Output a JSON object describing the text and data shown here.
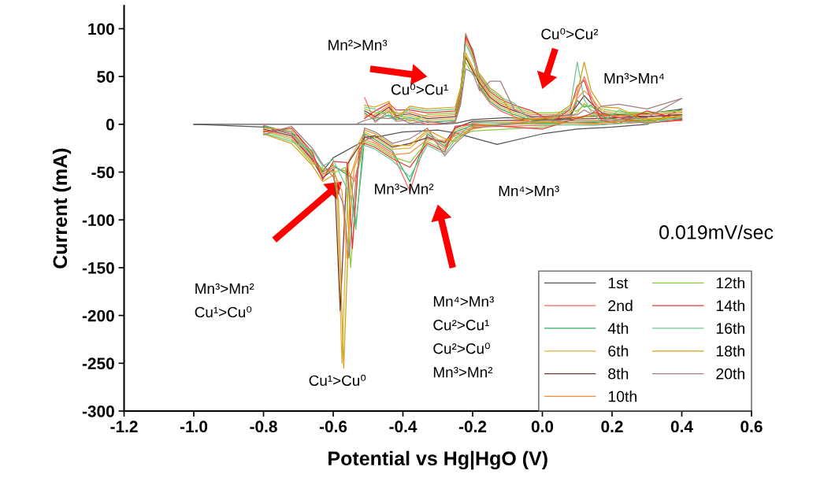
{
  "chart_data": {
    "type": "line",
    "xlabel": "Potential vs Hg|HgO (V)",
    "ylabel": "Current (mA)",
    "xlim": [
      -1.2,
      0.6
    ],
    "xticks": [
      -1.2,
      {
        "value": -1.0,
        "label": "-1.0"
      },
      -0.8,
      -0.6,
      -0.4,
      -0.2,
      {
        "value": 0.0,
        "label": "0.0"
      },
      0.2,
      0.4,
      0.6
    ],
    "ylim": [
      -300,
      124
    ],
    "yticks": [
      -300,
      -250,
      -200,
      -150,
      -100,
      -50,
      0,
      50,
      100
    ],
    "legend": "lower right",
    "line_style": "solid",
    "annotations": [
      "Mn²>Mn³",
      "Cu⁰>Cu²",
      "Mn³>Mn⁴",
      "Cu⁰>Cu¹",
      "Mn³>Mn²",
      "Mn⁴>Mn³",
      "Mn³>Mn²\nCu¹>Cu⁰",
      "Mn⁴>Mn³\nCu²>Cu¹\nCu²>Cu⁰\nMn³>Mn²",
      "Cu¹>Cu⁰",
      "0.019mV/sec"
    ],
    "series": [
      {
        "name": "1st",
        "color": "#555555",
        "x": [
          -1.0,
          -0.6,
          -0.3,
          -0.25,
          -0.2,
          -0.1,
          0.0,
          0.2,
          0.3,
          0.4
        ],
        "values": [
          0,
          0,
          0,
          1,
          5,
          7,
          5,
          10,
          11,
          16
        ]
      },
      {
        "color": "#555555",
        "x": [
          0.4,
          0.3,
          0.2,
          0.1,
          0.0,
          -0.13,
          -0.25,
          -0.3,
          -0.4,
          -0.5,
          -0.6,
          -0.63,
          -0.7,
          -0.8,
          -1.0
        ],
        "values": [
          16,
          0,
          -3,
          -5,
          -10,
          -21,
          -9,
          -6,
          -8,
          -15,
          -35,
          -49,
          -12,
          -3,
          0
        ]
      },
      {
        "name": "2nd",
        "color": "#ff6666",
        "x": [
          -0.51,
          -0.48,
          -0.44,
          -0.42,
          -0.38,
          -0.33,
          -0.25,
          -0.235,
          -0.22,
          -0.2,
          -0.18,
          -0.15,
          -0.12,
          -0.08,
          -0.03,
          0.03,
          0.08,
          0.1,
          0.12,
          0.14,
          0.17,
          0.22,
          0.3,
          0.4
        ],
        "values": [
          28,
          2,
          14,
          3,
          5,
          0,
          2,
          22,
          95,
          76,
          37,
          22,
          14,
          8,
          2,
          2,
          4,
          30,
          50,
          30,
          6,
          3,
          2,
          4
        ]
      },
      {
        "color": "#ff6666",
        "x": [
          0.4,
          0.3,
          0.15,
          0.0,
          -0.2,
          -0.25,
          -0.28,
          -0.33,
          -0.38,
          -0.43,
          -0.48,
          -0.51,
          -0.52,
          -0.54,
          -0.555,
          -0.6,
          -0.63,
          -0.66,
          -0.72,
          -0.8
        ],
        "values": [
          4,
          2,
          0,
          -1,
          -3,
          -10,
          -25,
          -12,
          -70,
          -30,
          -18,
          -12,
          -30,
          -60,
          -50,
          -45,
          -52,
          -35,
          -10,
          -1
        ]
      },
      {
        "name": "4th",
        "color": "#2eaa5c",
        "x": [
          -0.51,
          -0.48,
          -0.44,
          -0.42,
          -0.38,
          -0.33,
          -0.25,
          -0.235,
          -0.22,
          -0.2,
          -0.18,
          -0.15,
          -0.12,
          -0.08,
          -0.03,
          0.03,
          0.08,
          0.1,
          0.12,
          0.14,
          0.17,
          0.22,
          0.3,
          0.4
        ],
        "values": [
          12,
          4,
          10,
          5,
          7,
          2,
          4,
          24,
          93,
          74,
          39,
          24,
          16,
          10,
          4,
          4,
          6,
          25,
          18,
          20,
          8,
          5,
          4,
          6
        ]
      },
      {
        "color": "#2eaa5c",
        "x": [
          0.4,
          0.3,
          0.15,
          0.0,
          -0.2,
          -0.25,
          -0.28,
          -0.33,
          -0.38,
          -0.43,
          -0.48,
          -0.51,
          -0.515,
          -0.535,
          -0.55,
          -0.6,
          -0.63,
          -0.66,
          -0.72,
          -0.8
        ],
        "values": [
          6,
          4,
          2,
          1,
          -1,
          -8,
          -23,
          -10,
          -60,
          -28,
          -16,
          -10,
          -34,
          -105,
          -55,
          -43,
          -50,
          -33,
          -8,
          -2
        ]
      },
      {
        "name": "6th",
        "color": "#dcb040",
        "x": [
          -0.51,
          -0.48,
          -0.44,
          -0.42,
          -0.38,
          -0.33,
          -0.25,
          -0.235,
          -0.22,
          -0.2,
          -0.18,
          -0.15,
          -0.12,
          -0.08,
          -0.03,
          0.03,
          0.08,
          0.1,
          0.12,
          0.14,
          0.17,
          0.22,
          0.3,
          0.4
        ],
        "values": [
          10,
          6,
          16,
          7,
          9,
          4,
          6,
          26,
          75,
          60,
          41,
          26,
          18,
          12,
          6,
          6,
          8,
          12,
          22,
          15,
          10,
          7,
          6,
          8
        ]
      },
      {
        "color": "#dcb040",
        "x": [
          0.4,
          0.3,
          0.15,
          0.0,
          -0.2,
          -0.25,
          -0.28,
          -0.33,
          -0.38,
          -0.43,
          -0.48,
          -0.51,
          -0.555,
          -0.575,
          -0.59,
          -0.6,
          -0.63,
          -0.66,
          -0.72,
          -0.8
        ],
        "values": [
          8,
          6,
          4,
          3,
          1,
          -6,
          -21,
          -8,
          -25,
          -26,
          -14,
          -8,
          -38,
          -250,
          -60,
          -41,
          -54,
          -31,
          -6,
          -4
        ]
      },
      {
        "name": "8th",
        "color": "#7a3434",
        "x": [
          -0.51,
          -0.48,
          -0.44,
          -0.42,
          -0.38,
          -0.33,
          -0.25,
          -0.235,
          -0.22,
          -0.2,
          -0.18,
          -0.15,
          -0.12,
          -0.08,
          -0.03,
          0.03,
          0.08,
          0.1,
          0.12,
          0.14,
          0.17,
          0.22,
          0.3,
          0.4
        ],
        "values": [
          14,
          8,
          18,
          9,
          11,
          6,
          8,
          28,
          70,
          56,
          43,
          28,
          20,
          14,
          8,
          8,
          10,
          20,
          30,
          22,
          12,
          9,
          8,
          10
        ]
      },
      {
        "color": "#7a3434",
        "x": [
          0.4,
          0.3,
          0.15,
          0.0,
          -0.2,
          -0.25,
          -0.28,
          -0.33,
          -0.38,
          -0.43,
          -0.48,
          -0.51,
          -0.56,
          -0.58,
          -0.595,
          -0.6,
          -0.63,
          -0.66,
          -0.72,
          -0.8
        ],
        "values": [
          10,
          8,
          6,
          5,
          3,
          -4,
          -19,
          -14,
          -20,
          -24,
          -12,
          -14,
          -42,
          -195,
          -65,
          -47,
          -56,
          -37,
          -12,
          -5
        ]
      },
      {
        "name": "10th",
        "color": "#ff8c3c",
        "x": [
          -0.51,
          -0.48,
          -0.44,
          -0.42,
          -0.38,
          -0.33,
          -0.25,
          -0.235,
          -0.22,
          -0.2,
          -0.18,
          -0.15,
          -0.12,
          -0.08,
          -0.03,
          0.03,
          0.08,
          0.1,
          0.12,
          0.14,
          0.17,
          0.22,
          0.3,
          0.4
        ],
        "values": [
          8,
          10,
          20,
          11,
          13,
          8,
          10,
          30,
          89,
          71,
          45,
          30,
          22,
          16,
          10,
          10,
          12,
          27,
          35,
          28,
          14,
          11,
          10,
          12
        ]
      },
      {
        "color": "#ff8c3c",
        "x": [
          0.4,
          0.3,
          0.15,
          0.0,
          -0.2,
          -0.25,
          -0.28,
          -0.33,
          -0.38,
          -0.43,
          -0.48,
          -0.51,
          -0.54,
          -0.56,
          -0.575,
          -0.6,
          -0.63,
          -0.66,
          -0.72,
          -0.8
        ],
        "values": [
          12,
          10,
          8,
          7,
          -5,
          -12,
          -17,
          -16,
          -30,
          -32,
          -20,
          -16,
          -46,
          -140,
          -70,
          -49,
          -48,
          -39,
          -14,
          -6
        ]
      },
      {
        "name": "12th",
        "color": "#8ccc3c",
        "x": [
          -0.51,
          -0.48,
          -0.44,
          -0.42,
          -0.38,
          -0.33,
          -0.25,
          -0.235,
          -0.22,
          -0.2,
          -0.18,
          -0.15,
          -0.12,
          -0.08,
          -0.03,
          0.03,
          0.08,
          0.1,
          0.12,
          0.14,
          0.17,
          0.22,
          0.3,
          0.4
        ],
        "values": [
          16,
          12,
          12,
          13,
          3,
          10,
          12,
          32,
          65,
          52,
          47,
          32,
          24,
          18,
          12,
          12,
          14,
          14,
          20,
          18,
          16,
          13,
          12,
          14
        ]
      },
      {
        "color": "#8ccc3c",
        "x": [
          0.4,
          0.3,
          0.15,
          0.0,
          -0.2,
          -0.25,
          -0.28,
          -0.33,
          -0.38,
          -0.43,
          -0.48,
          -0.51,
          -0.53,
          -0.55,
          -0.565,
          -0.6,
          -0.63,
          -0.66,
          -0.72,
          -0.8
        ],
        "values": [
          14,
          12,
          10,
          -3,
          -7,
          -14,
          -27,
          -18,
          -40,
          -34,
          -22,
          -18,
          -50,
          -150,
          -45,
          -51,
          -46,
          -41,
          -16,
          -7
        ]
      },
      {
        "name": "14th",
        "color": "#e83838",
        "x": [
          -0.51,
          -0.48,
          -0.44,
          -0.42,
          -0.38,
          -0.33,
          -0.25,
          -0.235,
          -0.22,
          -0.2,
          -0.18,
          -0.15,
          -0.12,
          -0.08,
          -0.03,
          0.03,
          0.08,
          0.1,
          0.12,
          0.14,
          0.17,
          0.22,
          0.3,
          0.4
        ],
        "values": [
          6,
          14,
          22,
          15,
          15,
          12,
          14,
          34,
          91,
          78,
          49,
          34,
          26,
          20,
          14,
          3,
          16,
          40,
          46,
          25,
          4,
          1,
          14,
          5
        ]
      },
      {
        "color": "#e83838",
        "x": [
          0.4,
          0.3,
          0.15,
          0.0,
          -0.2,
          -0.25,
          -0.28,
          -0.33,
          -0.38,
          -0.43,
          -0.48,
          -0.51,
          -0.525,
          -0.545,
          -0.56,
          -0.6,
          -0.63,
          -0.66,
          -0.72,
          -0.8
        ],
        "values": [
          5,
          1,
          12,
          -5,
          0,
          -2,
          -29,
          -20,
          -45,
          -36,
          -24,
          -20,
          -26,
          -130,
          -40,
          -39,
          -58,
          -29,
          -4,
          -8
        ]
      },
      {
        "name": "16th",
        "color": "#6cc890",
        "x": [
          -0.51,
          -0.48,
          -0.44,
          -0.42,
          -0.38,
          -0.33,
          -0.25,
          -0.235,
          -0.22,
          -0.2,
          -0.18,
          -0.15,
          -0.12,
          -0.08,
          -0.03,
          0.03,
          0.08,
          0.1,
          0.12,
          0.14,
          0.17,
          0.22,
          0.3,
          0.4
        ],
        "values": [
          18,
          16,
          8,
          4,
          17,
          14,
          16,
          36,
          85,
          68,
          51,
          36,
          28,
          22,
          3,
          5,
          18,
          65,
          26,
          13,
          2,
          15,
          1,
          7
        ]
      },
      {
        "color": "#6cc890",
        "x": [
          0.4,
          0.3,
          0.15,
          0.0,
          -0.2,
          -0.25,
          -0.28,
          -0.33,
          -0.38,
          -0.43,
          -0.48,
          -0.51,
          -0.515,
          -0.535,
          -0.55,
          -0.6,
          -0.63,
          -0.66,
          -0.72,
          -0.8
        ],
        "values": [
          7,
          3,
          -1,
          0,
          2,
          -16,
          -31,
          -22,
          -55,
          -38,
          -26,
          -22,
          -22,
          -110,
          -75,
          -37,
          -44,
          -27,
          -18,
          -9
        ]
      },
      {
        "name": "18th",
        "color": "#d4a010",
        "x": [
          -0.51,
          -0.48,
          -0.44,
          -0.42,
          -0.38,
          -0.33,
          -0.25,
          -0.235,
          -0.22,
          -0.2,
          -0.18,
          -0.15,
          -0.12,
          -0.08,
          -0.03,
          0.03,
          0.08,
          0.1,
          0.12,
          0.14,
          0.17,
          0.22,
          0.3,
          0.4
        ],
        "values": [
          20,
          18,
          24,
          6,
          19,
          16,
          18,
          38,
          72,
          58,
          53,
          38,
          30,
          6,
          5,
          7,
          20,
          33,
          65,
          35,
          18,
          17,
          3,
          9
        ]
      },
      {
        "color": "#d4a010",
        "x": [
          0.4,
          0.3,
          0.15,
          0.0,
          -0.2,
          -0.25,
          -0.28,
          -0.33,
          -0.38,
          -0.43,
          -0.48,
          -0.51,
          -0.55,
          -0.57,
          -0.585,
          -0.6,
          -0.63,
          -0.66,
          -0.72,
          -0.8
        ],
        "values": [
          9,
          5,
          1,
          2,
          -2,
          -18,
          -15,
          -6,
          -22,
          -22,
          -10,
          -6,
          -54,
          -255,
          -80,
          -53,
          -60,
          -43,
          -20,
          -10
        ]
      },
      {
        "name": "20th",
        "color": "#a08080",
        "x": [
          -0.53,
          -0.51,
          -0.48,
          -0.44,
          -0.42,
          -0.38,
          -0.33,
          -0.28,
          -0.25,
          -0.235,
          -0.22,
          -0.2,
          -0.18,
          -0.15,
          -0.12,
          -0.08,
          -0.03,
          0.03,
          0.08,
          0.1,
          0.12,
          0.14,
          0.17,
          0.22,
          0.3,
          0.4
        ],
        "values": [
          1,
          4,
          7,
          6,
          8,
          1,
          3,
          1,
          3,
          20,
          58,
          54,
          35,
          45,
          45,
          15,
          7,
          9,
          9,
          10,
          15,
          11,
          19,
          21,
          16,
          27
        ]
      },
      {
        "color": "#a08080",
        "x": [
          0.4,
          0.3,
          0.15,
          0.0,
          -0.2,
          -0.25,
          -0.28,
          -0.33,
          -0.38,
          -0.43,
          -0.48,
          -0.51,
          -0.535,
          -0.555,
          -0.57,
          -0.6,
          -0.63,
          -0.66,
          -0.72,
          -0.8
        ],
        "values": [
          27,
          7,
          3,
          4,
          -4,
          -20,
          -33,
          -4,
          -15,
          -20,
          -8,
          -4,
          -58,
          -140,
          -85,
          -55,
          -42,
          -25,
          -2,
          -11
        ]
      }
    ]
  }
}
